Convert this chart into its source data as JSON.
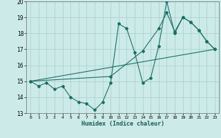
{
  "xlabel": "Humidex (Indice chaleur)",
  "bg_color": "#cceae8",
  "grid_color": "#aad4d0",
  "line_color": "#1a6e65",
  "xlim": [
    -0.5,
    23.5
  ],
  "ylim": [
    13,
    20
  ],
  "xticks": [
    0,
    1,
    2,
    3,
    4,
    5,
    6,
    7,
    8,
    9,
    10,
    11,
    12,
    13,
    14,
    15,
    16,
    17,
    18,
    19,
    20,
    21,
    22,
    23
  ],
  "yticks": [
    13,
    14,
    15,
    16,
    17,
    18,
    19,
    20
  ],
  "line1_x": [
    0,
    1,
    2,
    3,
    4,
    5,
    6,
    7,
    8,
    9,
    10,
    11,
    12,
    13,
    14,
    15,
    16,
    17,
    18,
    19,
    20,
    21,
    22,
    23
  ],
  "line1_y": [
    15.0,
    14.7,
    14.9,
    14.5,
    14.7,
    14.0,
    13.7,
    13.6,
    13.2,
    13.7,
    14.9,
    18.6,
    18.3,
    16.8,
    14.9,
    15.2,
    17.2,
    20.0,
    18.0,
    19.0,
    18.7,
    18.2,
    17.5,
    17.0
  ],
  "line2_x": [
    0,
    10,
    14,
    16,
    17,
    18,
    19,
    20,
    21,
    22,
    23
  ],
  "line2_y": [
    15.0,
    15.3,
    16.9,
    18.3,
    19.3,
    18.1,
    19.0,
    18.7,
    18.2,
    17.5,
    17.0
  ],
  "line3_x": [
    0,
    23
  ],
  "line3_y": [
    15.0,
    17.0
  ]
}
